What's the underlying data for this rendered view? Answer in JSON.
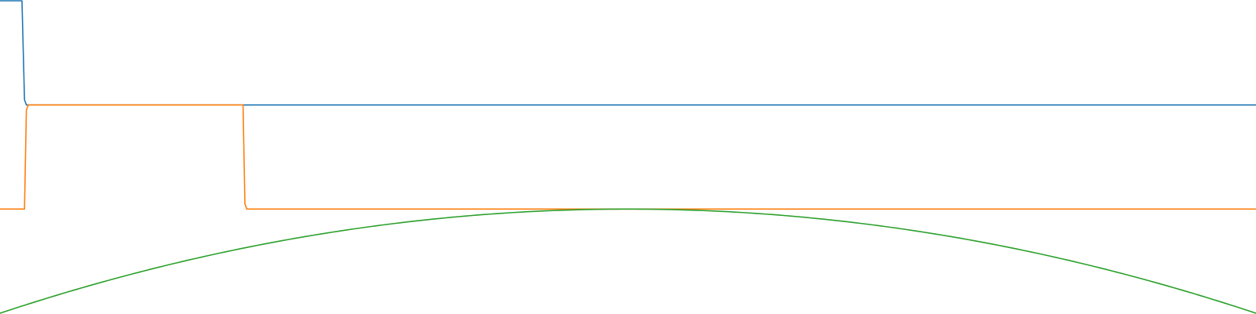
{
  "chart_data": {
    "type": "line",
    "title": "",
    "xlabel": "",
    "ylabel": "",
    "grid": false,
    "legend": "none",
    "xlim": [
      0,
      1
    ],
    "ylim": [
      0,
      3
    ],
    "series": [
      {
        "color": "#1f77b4",
        "x": [
          0,
          0.0175,
          0.0195,
          0.021,
          1
        ],
        "y": [
          3,
          3,
          2.05,
          2,
          2
        ]
      },
      {
        "color": "#ff7f0e",
        "x": [
          0,
          0.0195,
          0.021,
          0.0225,
          0.1935,
          0.195,
          0.1965,
          1
        ],
        "y": [
          1,
          1,
          1.95,
          2,
          2,
          1.05,
          1,
          1
        ]
      },
      {
        "color": "#2ca02c",
        "x": [
          0,
          0.1,
          0.2,
          0.3,
          0.4,
          0.5,
          0.6,
          0.7,
          0.8,
          0.9,
          1
        ],
        "y": [
          0,
          0.36,
          0.64,
          0.84,
          0.96,
          1,
          0.96,
          0.84,
          0.64,
          0.36,
          0
        ]
      }
    ]
  }
}
